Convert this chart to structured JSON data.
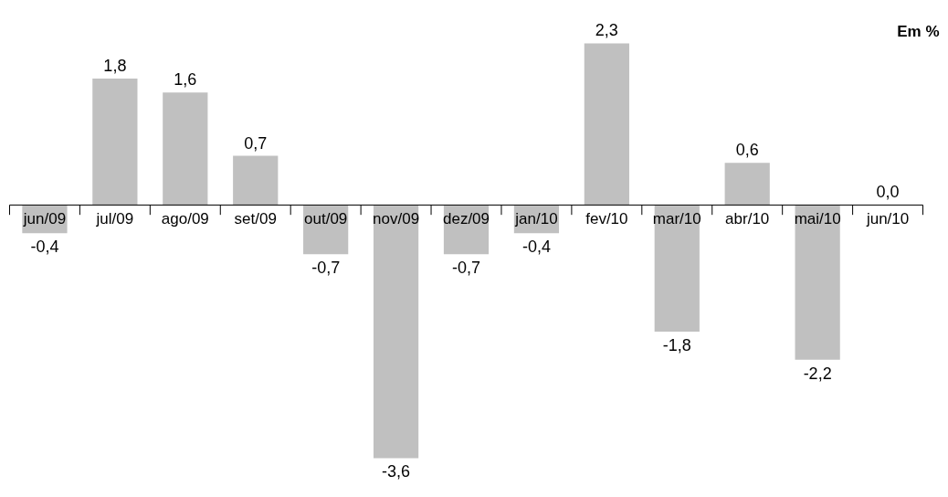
{
  "chart_data": {
    "type": "bar",
    "annotations": [
      "Em %"
    ],
    "categories": [
      "jun/09",
      "jul/09",
      "ago/09",
      "set/09",
      "out/09",
      "nov/09",
      "dez/09",
      "jan/10",
      "fev/10",
      "mar/10",
      "abr/10",
      "mai/10",
      "jun/10"
    ],
    "values": [
      -0.4,
      1.8,
      1.6,
      0.7,
      -0.7,
      -3.6,
      -0.7,
      -0.4,
      2.3,
      -1.8,
      0.6,
      -2.2,
      0.0
    ],
    "value_labels": [
      "-0,4",
      "1,8",
      "1,6",
      "0,7",
      "-0,7",
      "-3,6",
      "-0,7",
      "-0,4",
      "2,3",
      "-1,8",
      "0,6",
      "-2,2",
      "0,0"
    ],
    "color": "#c0c0c0",
    "grid": false
  }
}
